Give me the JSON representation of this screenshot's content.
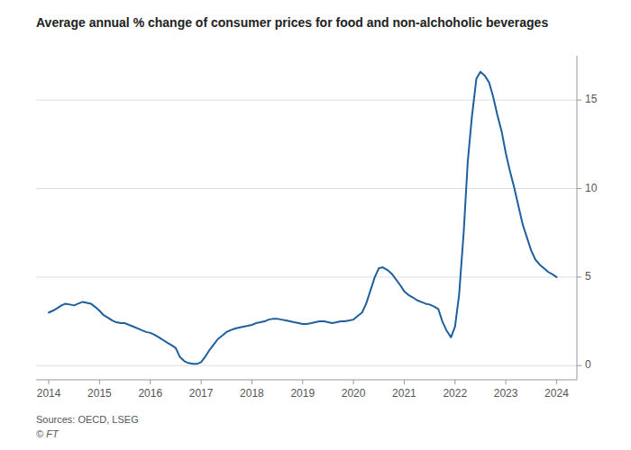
{
  "chart_data": {
    "type": "line",
    "title": "Average annual % change of consumer prices for food and non-alchoholic beverages",
    "annotations": [
      "Sources: OECD, LSEG",
      "© FT"
    ],
    "color": "#1f5f9e",
    "grid": true,
    "xlim": [
      2013.75,
      2024.4
    ],
    "xticks": [
      2014,
      2015,
      2016,
      2017,
      2018,
      2019,
      2020,
      2021,
      2022,
      2023,
      2024
    ],
    "ylim": [
      -0.8,
      17.5
    ],
    "yticks": [
      0,
      5,
      10,
      15
    ],
    "x": [
      2014.0,
      2014.08,
      2014.17,
      2014.25,
      2014.33,
      2014.42,
      2014.5,
      2014.58,
      2014.67,
      2014.75,
      2014.83,
      2014.92,
      2015.0,
      2015.08,
      2015.17,
      2015.25,
      2015.33,
      2015.42,
      2015.5,
      2015.58,
      2015.67,
      2015.75,
      2015.83,
      2015.92,
      2016.0,
      2016.08,
      2016.17,
      2016.25,
      2016.33,
      2016.42,
      2016.5,
      2016.58,
      2016.67,
      2016.75,
      2016.83,
      2016.92,
      2017.0,
      2017.08,
      2017.17,
      2017.25,
      2017.33,
      2017.42,
      2017.5,
      2017.58,
      2017.67,
      2017.75,
      2017.83,
      2017.92,
      2018.0,
      2018.08,
      2018.17,
      2018.25,
      2018.33,
      2018.42,
      2018.5,
      2018.58,
      2018.67,
      2018.75,
      2018.83,
      2018.92,
      2019.0,
      2019.08,
      2019.17,
      2019.25,
      2019.33,
      2019.42,
      2019.5,
      2019.58,
      2019.67,
      2019.75,
      2019.83,
      2019.92,
      2020.0,
      2020.08,
      2020.17,
      2020.25,
      2020.33,
      2020.42,
      2020.5,
      2020.58,
      2020.67,
      2020.75,
      2020.83,
      2020.92,
      2021.0,
      2021.08,
      2021.17,
      2021.25,
      2021.33,
      2021.42,
      2021.5,
      2021.58,
      2021.67,
      2021.75,
      2021.83,
      2021.92,
      2022.0,
      2022.08,
      2022.17,
      2022.25,
      2022.33,
      2022.42,
      2022.5,
      2022.58,
      2022.67,
      2022.75,
      2022.83,
      2022.92,
      2023.0,
      2023.08,
      2023.17,
      2023.25,
      2023.33,
      2023.42,
      2023.5,
      2023.58,
      2023.67,
      2023.75,
      2023.83,
      2023.92,
      2024.0
    ],
    "values": [
      3.0,
      3.1,
      3.25,
      3.4,
      3.5,
      3.45,
      3.4,
      3.5,
      3.6,
      3.55,
      3.5,
      3.3,
      3.1,
      2.85,
      2.7,
      2.55,
      2.45,
      2.4,
      2.4,
      2.3,
      2.2,
      2.1,
      2.0,
      1.9,
      1.85,
      1.75,
      1.6,
      1.45,
      1.3,
      1.15,
      1.0,
      0.5,
      0.25,
      0.15,
      0.1,
      0.1,
      0.2,
      0.5,
      0.9,
      1.2,
      1.5,
      1.7,
      1.9,
      2.0,
      2.1,
      2.15,
      2.2,
      2.25,
      2.3,
      2.4,
      2.45,
      2.5,
      2.6,
      2.65,
      2.65,
      2.6,
      2.55,
      2.5,
      2.45,
      2.4,
      2.35,
      2.35,
      2.4,
      2.45,
      2.5,
      2.5,
      2.45,
      2.4,
      2.45,
      2.5,
      2.5,
      2.55,
      2.6,
      2.8,
      3.0,
      3.5,
      4.2,
      5.0,
      5.5,
      5.55,
      5.4,
      5.2,
      4.9,
      4.55,
      4.2,
      4.0,
      3.85,
      3.7,
      3.6,
      3.5,
      3.45,
      3.35,
      3.2,
      2.5,
      2.0,
      1.6,
      2.2,
      4.0,
      7.5,
      11.5,
      14.0,
      16.2,
      16.6,
      16.4,
      16.0,
      15.2,
      14.2,
      13.2,
      12.0,
      11.0,
      10.0,
      9.0,
      8.0,
      7.2,
      6.5,
      6.0,
      5.7,
      5.5,
      5.3,
      5.15,
      5.0
    ]
  }
}
